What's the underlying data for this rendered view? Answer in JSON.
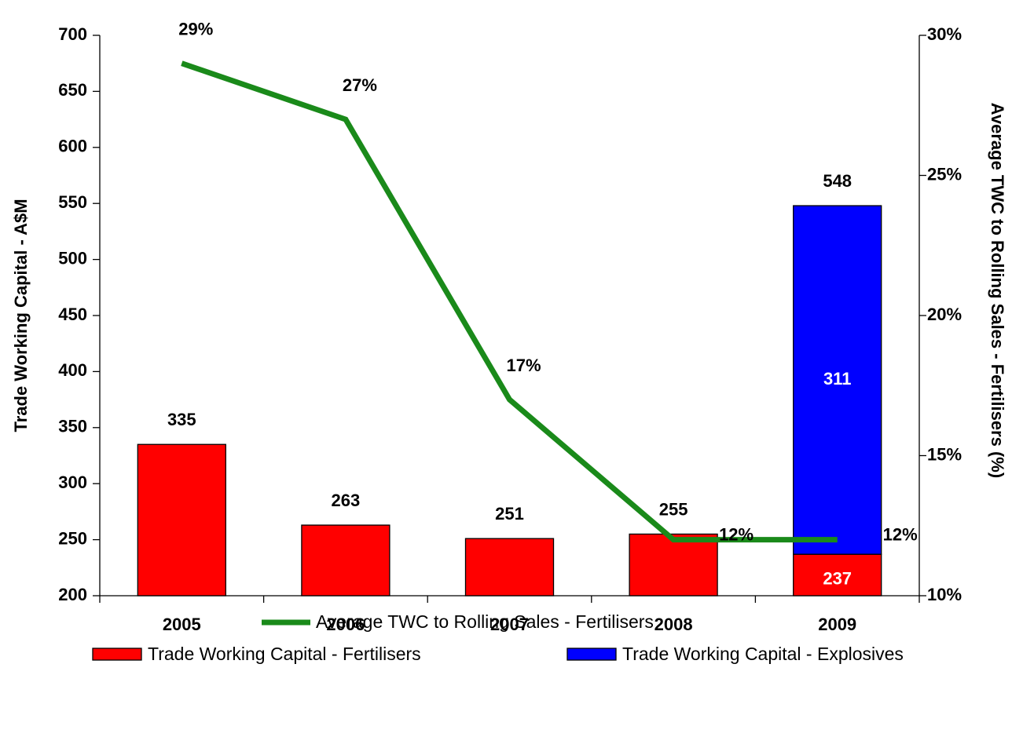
{
  "chart_data": {
    "type": "bar",
    "stacked": true,
    "y_label": "Trade Working Capital - A$M",
    "y2_label": "Average TWC to Rolling Sales - Fertilisers (%)",
    "categories": [
      "2005",
      "2006",
      "2007",
      "2008",
      "2009"
    ],
    "series": [
      {
        "name": "Trade Working Capital - Fertilisers",
        "color": "#ff0000",
        "values": [
          335,
          263,
          251,
          255,
          237
        ]
      },
      {
        "name": "Trade Working Capital - Explosives",
        "color": "#0000ff",
        "values": [
          null,
          null,
          null,
          null,
          311
        ]
      },
      {
        "name": "Average TWC to Rolling Sales - Fertilisers",
        "color": "#1a8a1a",
        "type": "line",
        "axis": "y2",
        "values": [
          29,
          27,
          17,
          12,
          12
        ],
        "value_labels": [
          "29%",
          "27%",
          "17%",
          "12%",
          "12%"
        ]
      }
    ],
    "totals": [
      null,
      null,
      null,
      null,
      548
    ],
    "ylim": [
      200,
      700
    ],
    "yticks": [
      200,
      250,
      300,
      350,
      400,
      450,
      500,
      550,
      600,
      650,
      700
    ],
    "y2lim": [
      10,
      30
    ],
    "y2ticks": [
      {
        "value": 10,
        "label": "10%"
      },
      {
        "value": 15,
        "label": "15%"
      },
      {
        "value": 20,
        "label": "20%"
      },
      {
        "value": 25,
        "label": "25%"
      },
      {
        "value": 30,
        "label": "30%"
      }
    ],
    "grid": false
  }
}
